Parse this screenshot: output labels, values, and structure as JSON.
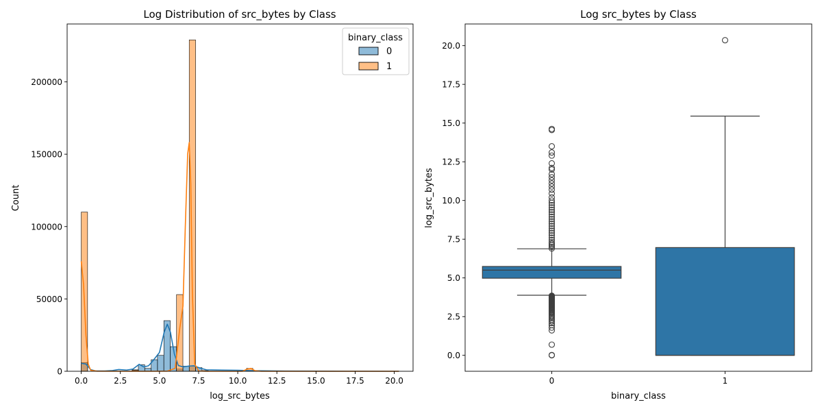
{
  "chart_data": [
    {
      "type": "histogram",
      "title": "Log Distribution of src_bytes by Class",
      "xlabel": "log_src_bytes",
      "ylabel": "Count",
      "xlim": [
        -0.9,
        21.2
      ],
      "ylim": [
        0,
        240000
      ],
      "xticks": [
        0.0,
        2.5,
        5.0,
        7.5,
        10.0,
        12.5,
        15.0,
        17.5,
        20.0
      ],
      "xtick_labels": [
        "0.0",
        "2.5",
        "5.0",
        "7.5",
        "10.0",
        "12.5",
        "15.0",
        "17.5",
        "20.0"
      ],
      "yticks": [
        0,
        50000,
        100000,
        150000,
        200000
      ],
      "ytick_labels": [
        "0",
        "50000",
        "100000",
        "150000",
        "200000"
      ],
      "bin_width": 0.406,
      "grid": false,
      "legend": {
        "title": "binary_class",
        "placement": "top-right",
        "entries": [
          {
            "label": "0",
            "color": "#1f77b4"
          },
          {
            "label": "1",
            "color": "#ff7f0e"
          }
        ]
      },
      "series": [
        {
          "name": "0",
          "color": "#1f77b4",
          "bins": [
            [
              0.0,
              6000
            ],
            [
              3.25,
              1000
            ],
            [
              3.65,
              4500
            ],
            [
              4.06,
              2000
            ],
            [
              4.47,
              8000
            ],
            [
              4.87,
              11000
            ],
            [
              5.28,
              35000
            ],
            [
              5.68,
              17000
            ],
            [
              6.09,
              1500
            ],
            [
              6.5,
              3500
            ],
            [
              6.9,
              3500
            ],
            [
              7.31,
              2500
            ],
            [
              7.71,
              500
            ]
          ],
          "kde": [
            [
              0,
              5500
            ],
            [
              0.3,
              5000
            ],
            [
              0.6,
              1200
            ],
            [
              0.9,
              300
            ],
            [
              1.5,
              200
            ],
            [
              2.0,
              500
            ],
            [
              2.4,
              1200
            ],
            [
              2.9,
              800
            ],
            [
              3.3,
              1500
            ],
            [
              3.7,
              4800
            ],
            [
              4.0,
              3000
            ],
            [
              4.3,
              3800
            ],
            [
              4.6,
              7500
            ],
            [
              5.0,
              13000
            ],
            [
              5.3,
              27000
            ],
            [
              5.5,
              32500
            ],
            [
              5.7,
              27000
            ],
            [
              5.95,
              12000
            ],
            [
              6.2,
              4000
            ],
            [
              6.5,
              3000
            ],
            [
              6.8,
              3500
            ],
            [
              7.2,
              3800
            ],
            [
              7.6,
              2200
            ],
            [
              8.0,
              1000
            ],
            [
              9.0,
              800
            ],
            [
              10.0,
              700
            ],
            [
              11.0,
              400
            ],
            [
              13.0,
              150
            ],
            [
              16.0,
              80
            ],
            [
              20.3,
              0
            ]
          ]
        },
        {
          "name": "1",
          "color": "#ff7f0e",
          "bins": [
            [
              0.0,
              110000
            ],
            [
              3.25,
              800
            ],
            [
              6.09,
              53000
            ],
            [
              6.9,
              229000
            ],
            [
              10.56,
              2000
            ],
            [
              10.97,
              500
            ]
          ],
          "kde": [
            [
              0,
              76000
            ],
            [
              0.15,
              60000
            ],
            [
              0.3,
              25000
            ],
            [
              0.45,
              5000
            ],
            [
              0.6,
              700
            ],
            [
              1.0,
              100
            ],
            [
              3.0,
              0
            ],
            [
              4.5,
              0
            ],
            [
              5.5,
              100
            ],
            [
              6.0,
              2000
            ],
            [
              6.3,
              30000
            ],
            [
              6.5,
              45000
            ],
            [
              6.65,
              100000
            ],
            [
              6.8,
              150000
            ],
            [
              6.9,
              158000
            ],
            [
              7.0,
              130000
            ],
            [
              7.1,
              55000
            ],
            [
              7.25,
              5000
            ],
            [
              7.5,
              200
            ],
            [
              8.0,
              0
            ],
            [
              10.3,
              0
            ],
            [
              10.6,
              1500
            ],
            [
              10.85,
              2000
            ],
            [
              11.1,
              400
            ],
            [
              11.5,
              0
            ],
            [
              20.3,
              0
            ]
          ]
        }
      ]
    },
    {
      "type": "boxplot",
      "title": "Log src_bytes by Class",
      "xlabel": "binary_class",
      "ylabel": "log_src_bytes",
      "categories": [
        "0",
        "1"
      ],
      "ylim": [
        -1.03,
        21.4
      ],
      "yticks": [
        0.0,
        2.5,
        5.0,
        7.5,
        10.0,
        12.5,
        15.0,
        17.5,
        20.0
      ],
      "ytick_labels": [
        "0.0",
        "2.5",
        "5.0",
        "7.5",
        "10.0",
        "12.5",
        "15.0",
        "17.5",
        "20.0"
      ],
      "color": "#2e75a6",
      "grid": false,
      "boxes": [
        {
          "category": "0",
          "q1": 4.98,
          "median": 5.5,
          "q3": 5.74,
          "whisker_low": 3.88,
          "whisker_high": 6.88,
          "outliers": [
            0.0,
            0.02,
            0.69,
            1.61,
            1.79,
            1.95,
            2.08,
            2.2,
            2.3,
            2.4,
            2.48,
            2.56,
            2.64,
            2.71,
            2.77,
            2.83,
            2.89,
            2.94,
            3.0,
            3.04,
            3.09,
            3.14,
            3.18,
            3.22,
            3.26,
            3.3,
            3.33,
            3.37,
            3.4,
            3.43,
            3.47,
            3.5,
            3.53,
            3.56,
            3.58,
            3.61,
            3.64,
            3.66,
            3.69,
            3.71,
            3.74,
            3.76,
            3.78,
            3.81,
            3.83,
            3.85,
            6.9,
            7.0,
            7.1,
            7.2,
            7.3,
            7.45,
            7.6,
            7.75,
            7.9,
            8.05,
            8.2,
            8.35,
            8.5,
            8.65,
            8.8,
            8.95,
            9.1,
            9.25,
            9.4,
            9.55,
            9.7,
            9.85,
            10.0,
            10.2,
            10.45,
            10.7,
            10.9,
            11.1,
            11.3,
            11.5,
            11.7,
            12.0,
            12.1,
            12.4,
            12.9,
            13.1,
            13.5,
            14.55,
            14.62
          ]
        },
        {
          "category": "1",
          "q1": 0.0,
          "median": 0.0,
          "q3": 6.96,
          "whisker_low": 0.0,
          "whisker_high": 15.45,
          "outliers": [
            20.35
          ]
        }
      ]
    }
  ]
}
